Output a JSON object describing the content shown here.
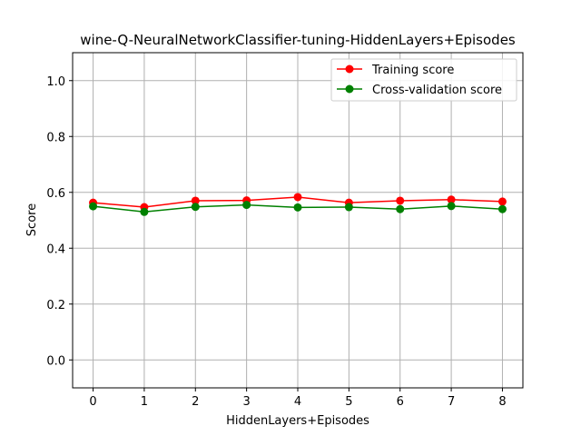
{
  "chart_data": {
    "type": "line",
    "title": "wine-Q-NeuralNetworkClassifier-tuning-HiddenLayers+Episodes",
    "xlabel": "HiddenLayers+Episodes",
    "ylabel": "Score",
    "x": [
      0,
      1,
      2,
      3,
      4,
      5,
      6,
      7,
      8
    ],
    "xlim": [
      -0.4,
      8.4
    ],
    "ylim": [
      -0.1,
      1.1
    ],
    "xticks": [
      "0",
      "1",
      "2",
      "3",
      "4",
      "5",
      "6",
      "7",
      "8"
    ],
    "yticks": [
      "0.0",
      "0.2",
      "0.4",
      "0.6",
      "0.8",
      "1.0"
    ],
    "grid": true,
    "legend_position": "top-right",
    "series": [
      {
        "name": "Training score",
        "color": "#ff0000",
        "values": [
          0.563,
          0.547,
          0.57,
          0.571,
          0.583,
          0.563,
          0.57,
          0.574,
          0.567
        ]
      },
      {
        "name": "Cross-validation score",
        "color": "#008000",
        "values": [
          0.55,
          0.53,
          0.548,
          0.555,
          0.546,
          0.547,
          0.54,
          0.551,
          0.54
        ]
      }
    ]
  }
}
